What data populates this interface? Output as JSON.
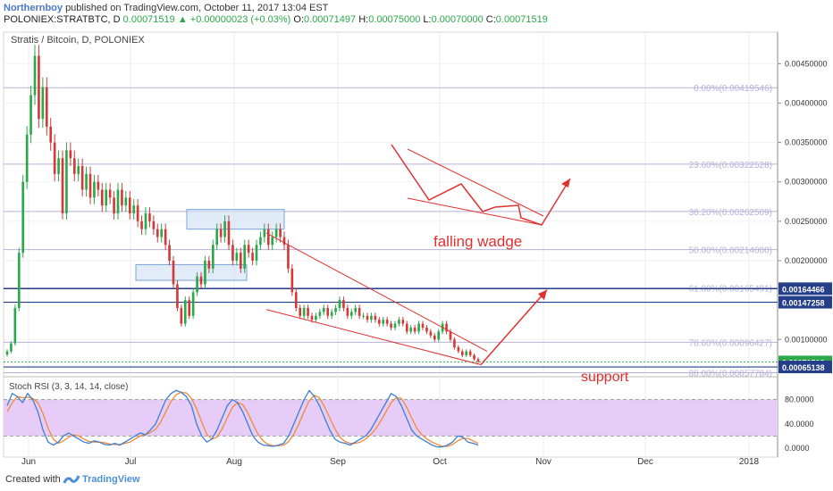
{
  "header": {
    "author": "Northernboy",
    "published": "published on TradingView.com, October 11, 2017 13:04 EST",
    "symbol": "POLONIEX:STRATBTC, D",
    "price": "0.00071519",
    "change": "▲ +0.00000023 (+0.03%)",
    "o_label": "O:",
    "o_value": "0.00071497",
    "h_label": "H:",
    "h_value": "0.00075000",
    "l_label": "L:",
    "l_value": "0.00070000",
    "c_label": "C:",
    "c_value": "0.00071519"
  },
  "footer": {
    "created_with": "Created with",
    "brand": "TradingView"
  },
  "colors": {
    "up": "#2aa84a",
    "down": "#d23a3a",
    "fib": "#b7b0d8",
    "hline": "#243e8a",
    "annotation": "#e03030",
    "box_fill": "#cfe0f5",
    "box_stroke": "#7aa3d8",
    "rsi_band": "#e6ccf7",
    "rsi_k": "#3f7fd0",
    "rsi_d": "#f08a3a"
  },
  "chart_data": {
    "type": "candlestick",
    "title": "Stratis / Bitcoin, D, POLONIEX",
    "x_ticks": [
      "Jun",
      "Jul",
      "Aug",
      "Sep",
      "Oct",
      "Nov",
      "Dec",
      "2018"
    ],
    "y_ticks": [
      "0.00450000",
      "0.00400000",
      "0.00350000",
      "0.00300000",
      "0.00250000",
      "0.00200000",
      "0.00100000"
    ],
    "ylim": [
      0.00055,
      0.0049
    ],
    "close_series": [
      0.00085,
      0.00095,
      0.0014,
      0.0021,
      0.003,
      0.0036,
      0.0041,
      0.0046,
      0.0038,
      0.0042,
      0.0037,
      0.0035,
      0.0031,
      0.0033,
      0.0026,
      0.0034,
      0.0033,
      0.0031,
      0.0032,
      0.0029,
      0.0031,
      0.0028,
      0.003,
      0.0029,
      0.0027,
      0.0029,
      0.0028,
      0.0026,
      0.0029,
      0.0027,
      0.0028,
      0.0026,
      0.0027,
      0.0025,
      0.0024,
      0.0026,
      0.0025,
      0.0024,
      0.0023,
      0.0024,
      0.0022,
      0.002,
      0.0017,
      0.0014,
      0.0012,
      0.0015,
      0.0013,
      0.0016,
      0.0018,
      0.0017,
      0.002,
      0.0019,
      0.0022,
      0.0024,
      0.0023,
      0.0025,
      0.0022,
      0.002,
      0.0021,
      0.0019,
      0.0022,
      0.0021,
      0.002,
      0.0022,
      0.0023,
      0.0024,
      0.0022,
      0.0023,
      0.0024,
      0.0023,
      0.0022,
      0.0019,
      0.0016,
      0.0014,
      0.0013,
      0.0014,
      0.0013,
      0.00125,
      0.0013,
      0.00135,
      0.0014,
      0.0013,
      0.00135,
      0.0014,
      0.0015,
      0.0014,
      0.0013,
      0.00135,
      0.0014,
      0.0013,
      0.0013,
      0.00125,
      0.0013,
      0.00125,
      0.0012,
      0.00125,
      0.0012,
      0.00115,
      0.0012,
      0.00125,
      0.0012,
      0.0011,
      0.00115,
      0.0011,
      0.0012,
      0.00115,
      0.0011,
      0.00105,
      0.001,
      0.0011,
      0.0012,
      0.0011,
      0.001,
      0.0009,
      0.00085,
      0.0008,
      0.00085,
      0.0008,
      0.00075,
      0.00072
    ],
    "fib_levels": [
      {
        "label": "0.00%(0.00419546)",
        "value": 0.00419546
      },
      {
        "label": "23.60%(0.00322528)",
        "value": 0.00322528
      },
      {
        "label": "38.20%(0.00262509)",
        "value": 0.00262509
      },
      {
        "label": "50.00%(0.00214000)",
        "value": 0.00214
      },
      {
        "label": "61.80%(0.00165491)",
        "value": 0.00165491
      },
      {
        "label": "78.60%(0.00096427)",
        "value": 0.00096427
      },
      {
        "label": "88.00%(0.00057784)",
        "value": 0.00057784
      }
    ],
    "price_badges": [
      {
        "label": "0.00164466",
        "value": 0.00164466,
        "color": "#243e8a"
      },
      {
        "label": "0.00147258",
        "value": 0.00147258,
        "color": "#243e8a"
      },
      {
        "label": "0.00071519",
        "value": 0.00071519,
        "color": "#2aa84a"
      },
      {
        "label": "0.00065138",
        "value": 0.00065138,
        "color": "#243e8a"
      }
    ],
    "annotations": {
      "falling_wedge": "falling wadge",
      "support": "support"
    },
    "rsi": {
      "title": "Stoch RSI (3, 3, 14, 14, close)",
      "y_ticks": [
        "80.0000",
        "40.0000",
        "0.0000"
      ],
      "ylim": [
        0,
        100
      ],
      "band": [
        20,
        80
      ],
      "k": [
        70,
        90,
        85,
        75,
        90,
        80,
        60,
        30,
        10,
        5,
        10,
        20,
        25,
        20,
        15,
        10,
        8,
        12,
        10,
        6,
        5,
        8,
        5,
        10,
        15,
        20,
        25,
        22,
        30,
        40,
        60,
        80,
        90,
        95,
        92,
        85,
        70,
        40,
        20,
        10,
        15,
        30,
        50,
        70,
        80,
        75,
        60,
        40,
        20,
        10,
        5,
        4,
        3,
        5,
        8,
        20,
        40,
        60,
        80,
        95,
        85,
        70,
        50,
        30,
        15,
        10,
        8,
        5,
        10,
        15,
        20,
        30,
        45,
        60,
        75,
        90,
        85,
        70,
        50,
        30,
        20,
        15,
        10,
        5,
        2,
        2,
        5,
        10,
        20,
        18,
        10,
        8,
        5
      ],
      "d": [
        60,
        75,
        85,
        83,
        84,
        82,
        75,
        57,
        33,
        15,
        8,
        12,
        18,
        22,
        20,
        15,
        11,
        10,
        10,
        9,
        7,
        6,
        6,
        8,
        10,
        15,
        20,
        22,
        26,
        31,
        43,
        60,
        77,
        88,
        92,
        91,
        82,
        65,
        43,
        23,
        15,
        18,
        32,
        50,
        67,
        75,
        72,
        58,
        40,
        23,
        12,
        6,
        4,
        4,
        5,
        11,
        23,
        40,
        60,
        78,
        87,
        83,
        68,
        50,
        32,
        18,
        11,
        8,
        8,
        10,
        15,
        22,
        32,
        45,
        60,
        75,
        83,
        82,
        68,
        50,
        33,
        22,
        15,
        10,
        6,
        3,
        3,
        6,
        12,
        16,
        16,
        12,
        8
      ]
    }
  }
}
